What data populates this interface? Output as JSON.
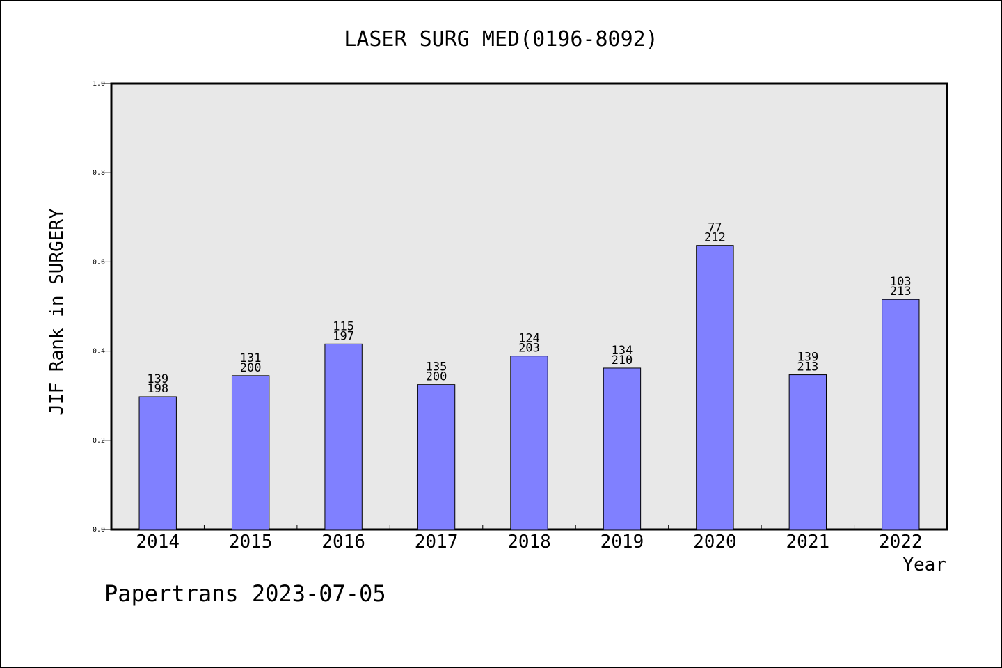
{
  "chart_data": {
    "type": "bar",
    "title": "LASER SURG MED(0196-8092)",
    "xlabel": "Year",
    "ylabel": "JIF Rank in SURGERY",
    "ylim": [
      0,
      1
    ],
    "yticks": [
      "0.0",
      "0.2",
      "0.4",
      "0.6",
      "0.8",
      "1.0"
    ],
    "categories": [
      "2014",
      "2015",
      "2016",
      "2017",
      "2018",
      "2019",
      "2020",
      "2021",
      "2022"
    ],
    "values": [
      0.298,
      0.345,
      0.416,
      0.325,
      0.389,
      0.362,
      0.637,
      0.347,
      0.516
    ],
    "rank_labels": [
      {
        "rank": "139",
        "total": "198"
      },
      {
        "rank": "131",
        "total": "200"
      },
      {
        "rank": "115",
        "total": "197"
      },
      {
        "rank": "135",
        "total": "200"
      },
      {
        "rank": "124",
        "total": "203"
      },
      {
        "rank": "134",
        "total": "210"
      },
      {
        "rank": "77",
        "total": "212"
      },
      {
        "rank": "139",
        "total": "213"
      },
      {
        "rank": "103",
        "total": "213"
      }
    ],
    "grid": false,
    "colors": {
      "bar": "#8080ff",
      "plot_bg": "#e8e8e8"
    }
  },
  "footer": "Papertrans 2023-07-05"
}
